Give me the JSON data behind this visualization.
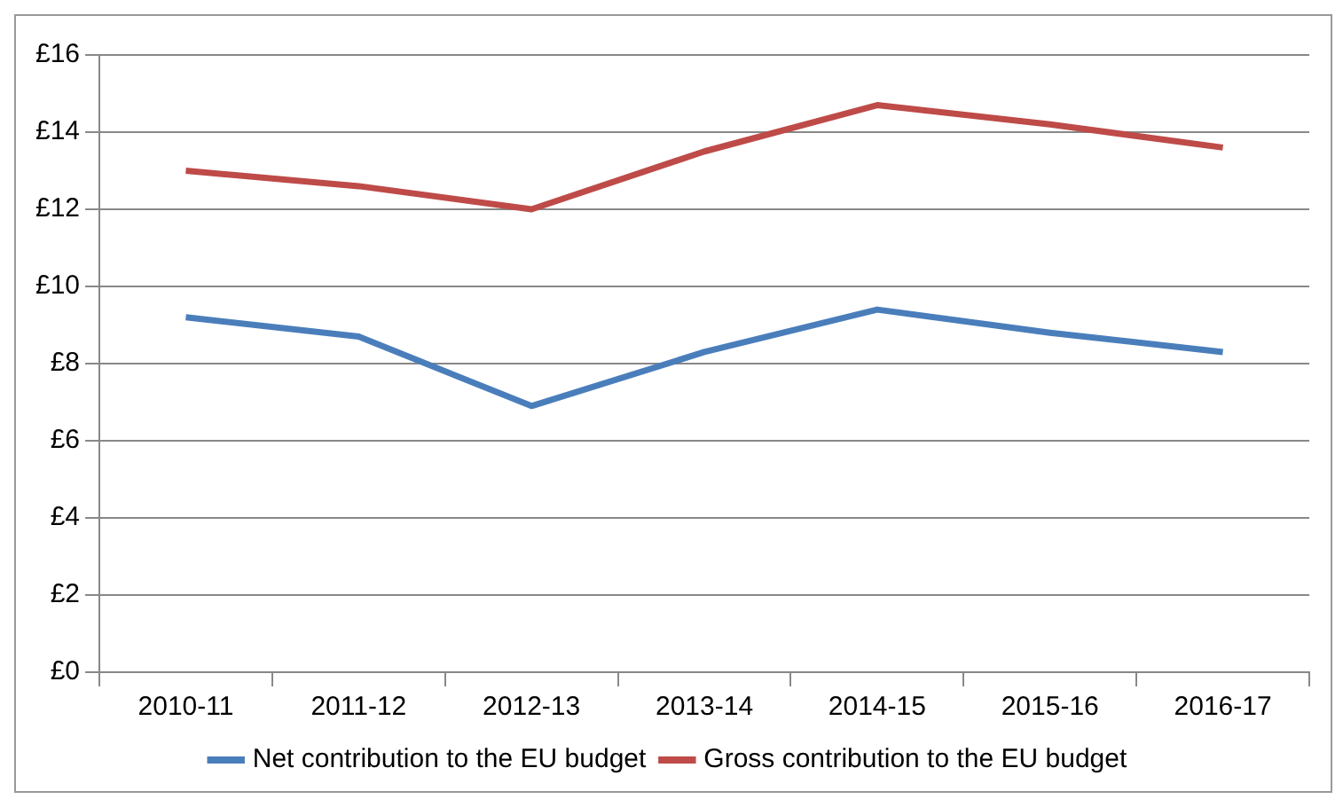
{
  "chart_data": {
    "type": "line",
    "categories": [
      "2010-11",
      "2011-12",
      "2012-13",
      "2013-14",
      "2014-15",
      "2015-16",
      "2016-17"
    ],
    "series": [
      {
        "name": "Net contribution to the EU budget",
        "color": "#4a7ebb",
        "values": [
          9.2,
          8.7,
          6.9,
          8.3,
          9.4,
          8.8,
          8.3
        ]
      },
      {
        "name": "Gross contribution to the EU budget",
        "color": "#be4b48",
        "values": [
          13.0,
          12.6,
          12.0,
          13.5,
          14.7,
          14.2,
          13.6
        ]
      }
    ],
    "ylim": [
      0,
      16
    ],
    "yticks": [
      {
        "value": 0,
        "label": "£0"
      },
      {
        "value": 2,
        "label": "£2"
      },
      {
        "value": 4,
        "label": "£4"
      },
      {
        "value": 6,
        "label": "£6"
      },
      {
        "value": 8,
        "label": "£8"
      },
      {
        "value": 10,
        "label": "£10"
      },
      {
        "value": 12,
        "label": "£12"
      },
      {
        "value": 14,
        "label": "£14"
      },
      {
        "value": 16,
        "label": "£16"
      }
    ],
    "grid": "y",
    "legend": "bottom",
    "marker": "none",
    "line_style": "solid"
  }
}
